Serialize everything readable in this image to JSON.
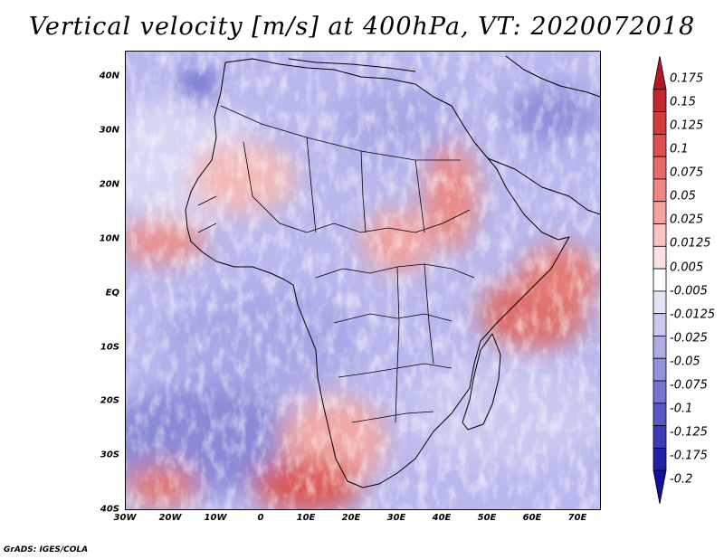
{
  "title": "Vertical velocity [m/s] at 400hPa, VT: 2020072018",
  "footer": "GrADS: IGES/COLA",
  "map": {
    "region": "Africa",
    "lon_range": [
      -30,
      75
    ],
    "lat_range": [
      -40,
      45
    ],
    "lat_labels": [
      "40N",
      "30N",
      "20N",
      "10N",
      "EQ",
      "10S",
      "20S",
      "30S",
      "40S"
    ],
    "lat_values": [
      40,
      30,
      20,
      10,
      0,
      -10,
      -20,
      -30,
      -40
    ],
    "lon_labels": [
      "30W",
      "20W",
      "10W",
      "0",
      "10E",
      "20E",
      "30E",
      "40E",
      "50E",
      "60E",
      "70E"
    ],
    "lon_values": [
      -30,
      -20,
      -10,
      0,
      10,
      20,
      30,
      40,
      50,
      60,
      70
    ]
  },
  "colorbar": {
    "labels": [
      "0.175",
      "0.15",
      "0.125",
      "0.1",
      "0.075",
      "0.05",
      "0.025",
      "0.0125",
      "0.005",
      "-0.005",
      "-0.0125",
      "-0.025",
      "-0.05",
      "-0.075",
      "-0.1",
      "-0.125",
      "-0.175",
      "-0.2"
    ],
    "colors": [
      "#b2182b",
      "#c6272f",
      "#d43a3a",
      "#e05050",
      "#e86a68",
      "#ef8683",
      "#f4a3a0",
      "#f8c4c2",
      "#fbe2e1",
      "#ffffff",
      "#e4e4f7",
      "#c9c9ef",
      "#adade6",
      "#9191dc",
      "#7575d1",
      "#5959c5",
      "#3c3cb8",
      "#2020a8",
      "#1010a0"
    ]
  }
}
